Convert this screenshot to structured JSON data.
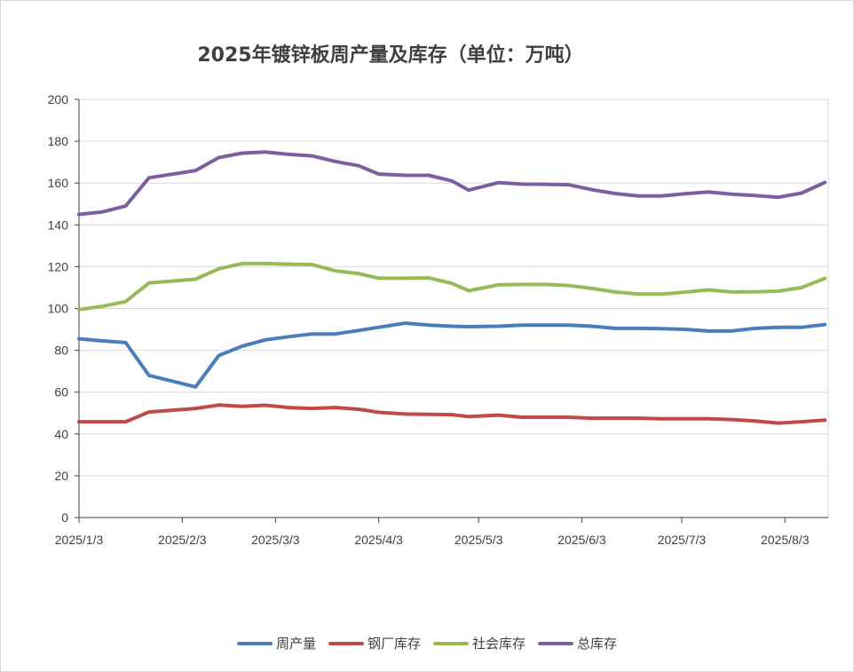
{
  "chart_data": {
    "type": "line",
    "title": "2025年镀锌板周产量及库存（单位：万吨）",
    "ylim": [
      0,
      200
    ],
    "yticks": [
      0,
      20,
      40,
      60,
      80,
      100,
      120,
      140,
      160,
      180,
      200
    ],
    "x_tick_labels": [
      "2025/1/3",
      "2025/2/3",
      "2025/3/3",
      "2025/4/3",
      "2025/5/3",
      "2025/6/3",
      "2025/7/3",
      "2025/8/3"
    ],
    "x_tick_dates": [
      "2025-01-03",
      "2025-02-03",
      "2025-03-03",
      "2025-04-03",
      "2025-05-03",
      "2025-06-03",
      "2025-07-03",
      "2025-08-03"
    ],
    "x_range": [
      "2025-01-03",
      "2025-08-16"
    ],
    "grid": "horizontal",
    "legend_position": "bottom",
    "x": [
      "2025-01-03",
      "2025-01-10",
      "2025-01-17",
      "2025-01-24",
      "2025-02-07",
      "2025-02-14",
      "2025-02-21",
      "2025-02-28",
      "2025-03-07",
      "2025-03-14",
      "2025-03-21",
      "2025-03-28",
      "2025-04-03",
      "2025-04-11",
      "2025-04-18",
      "2025-04-25",
      "2025-04-30",
      "2025-05-09",
      "2025-05-16",
      "2025-05-23",
      "2025-05-30",
      "2025-06-06",
      "2025-06-13",
      "2025-06-20",
      "2025-06-27",
      "2025-07-04",
      "2025-07-11",
      "2025-07-18",
      "2025-07-25",
      "2025-08-01",
      "2025-08-08",
      "2025-08-15"
    ],
    "series": [
      {
        "name": "周产量",
        "color": "#4a7ebb",
        "values": [
          85.5,
          84.5,
          83.7,
          68,
          62.5,
          77.5,
          82,
          85,
          86.5,
          87.8,
          87.8,
          89.5,
          91,
          93,
          92,
          91.5,
          91.3,
          91.5,
          92,
          92,
          92,
          91.5,
          90.5,
          90.5,
          90.3,
          90,
          89.2,
          89.2,
          90.5,
          91,
          91,
          92.3
        ]
      },
      {
        "name": "钢厂库存",
        "color": "#be4b48",
        "values": [
          45.8,
          45.8,
          45.8,
          50.5,
          52.2,
          53.8,
          53.2,
          53.7,
          52.6,
          52.2,
          52.6,
          51.8,
          50.3,
          49.5,
          49.4,
          49.2,
          48.3,
          49,
          48,
          48,
          48,
          47.5,
          47.5,
          47.5,
          47.2,
          47.2,
          47.2,
          46.9,
          46.2,
          45.2,
          45.8,
          46.6
        ]
      },
      {
        "name": "社会库存",
        "color": "#98b954",
        "values": [
          99.5,
          101,
          103.3,
          112.2,
          114,
          119,
          121.5,
          121.5,
          121.2,
          121,
          118,
          116.7,
          114.5,
          114.5,
          114.6,
          112,
          108.5,
          111.3,
          111.5,
          111.5,
          111,
          109.6,
          107.9,
          106.9,
          106.9,
          107.8,
          108.9,
          107.9,
          108,
          108.3,
          110,
          114.4
        ]
      },
      {
        "name": "总库存",
        "color": "#7d5fa0",
        "values": [
          145,
          146.2,
          149,
          162.5,
          166,
          172.2,
          174.3,
          174.8,
          173.7,
          173,
          170.3,
          168.3,
          164.3,
          163.7,
          163.7,
          161,
          156.6,
          160.2,
          159.5,
          159.4,
          159.2,
          156.8,
          155,
          153.8,
          153.8,
          154.9,
          155.7,
          154.7,
          154,
          153.2,
          155.2,
          160.3
        ]
      }
    ]
  }
}
